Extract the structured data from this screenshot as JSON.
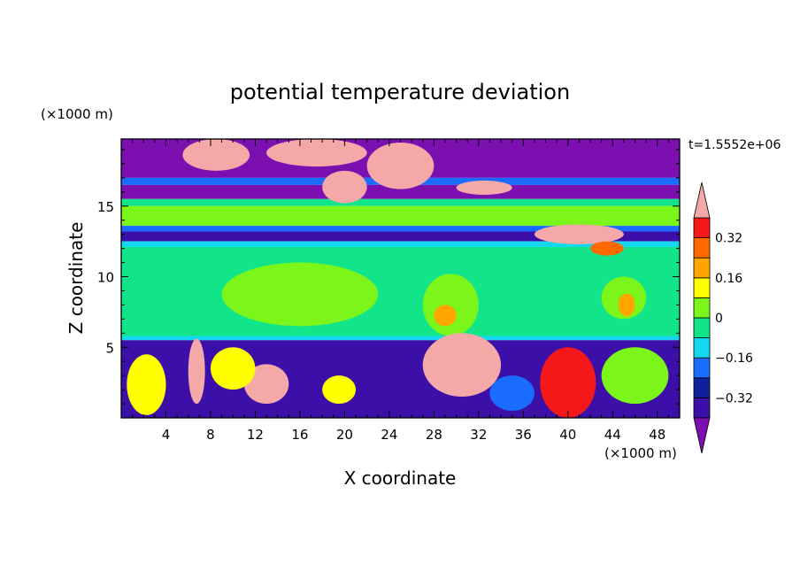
{
  "chart_data": {
    "type": "heatmap",
    "title": "potential temperature deviation",
    "xlabel": "X coordinate",
    "ylabel": "Z coordinate",
    "x_unit": "(×1000 m)",
    "y_unit": "(×1000 m)",
    "time_label": "t=1.5552e+06",
    "xlim": [
      0,
      50
    ],
    "ylim": [
      0,
      19.75
    ],
    "x_ticks": [
      4,
      8,
      12,
      16,
      20,
      24,
      28,
      32,
      36,
      40,
      44,
      48
    ],
    "y_ticks": [
      5,
      10,
      15
    ],
    "colorbar": {
      "levels": [
        -0.4,
        -0.32,
        -0.24,
        -0.16,
        -0.08,
        0,
        0.08,
        0.16,
        0.24,
        0.32,
        0.4
      ],
      "labeled_levels": [
        -0.32,
        -0.16,
        0,
        0.16,
        0.32
      ],
      "colors": [
        "#7b0fb0",
        "#3c10a8",
        "#10209c",
        "#1a6cff",
        "#14d8f0",
        "#12e48a",
        "#7cf51a",
        "#ffff00",
        "#ffa600",
        "#ff6a00",
        "#f51818",
        "#f4a8a8"
      ],
      "extend": "both"
    },
    "bands": [
      {
        "z": [
          17.0,
          19.75
        ],
        "value": -0.45
      },
      {
        "z": [
          16.5,
          17.0
        ],
        "value": -0.2
      },
      {
        "z": [
          15.5,
          16.5
        ],
        "value": -0.45
      },
      {
        "z": [
          15.0,
          15.5
        ],
        "value": -0.05
      },
      {
        "z": [
          13.6,
          15.0
        ],
        "value": 0.04
      },
      {
        "z": [
          13.2,
          13.6
        ],
        "value": -0.2
      },
      {
        "z": [
          12.5,
          13.2
        ],
        "value": -0.38
      },
      {
        "z": [
          12.1,
          12.5
        ],
        "value": -0.1
      },
      {
        "z": [
          5.8,
          12.1
        ],
        "value": -0.02
      },
      {
        "z": [
          5.5,
          5.8
        ],
        "value": -0.14
      },
      {
        "z": [
          0,
          5.5
        ],
        "value": -0.4
      }
    ],
    "anomalies": [
      {
        "x": [
          5.5,
          11.5
        ],
        "z": [
          17.5,
          19.75
        ],
        "value": 0.45
      },
      {
        "x": [
          13,
          22
        ],
        "z": [
          17.8,
          19.75
        ],
        "value": 0.45
      },
      {
        "x": [
          22,
          28
        ],
        "z": [
          16.2,
          19.5
        ],
        "value": 0.45
      },
      {
        "x": [
          18,
          22
        ],
        "z": [
          15.2,
          17.5
        ],
        "value": 0.45
      },
      {
        "x": [
          30,
          35
        ],
        "z": [
          15.8,
          16.8
        ],
        "value": 0.45
      },
      {
        "x": [
          37,
          45
        ],
        "z": [
          12.3,
          13.7
        ],
        "value": 0.45
      },
      {
        "x": [
          42,
          45
        ],
        "z": [
          11.5,
          12.5
        ],
        "value": 0.24
      },
      {
        "x": [
          9,
          23
        ],
        "z": [
          6.5,
          11
        ],
        "value": 0.04
      },
      {
        "x": [
          27,
          32
        ],
        "z": [
          5.8,
          10.2
        ],
        "value": 0.04
      },
      {
        "x": [
          28,
          30
        ],
        "z": [
          6.5,
          8
        ],
        "value": 0.2
      },
      {
        "x": [
          43,
          47
        ],
        "z": [
          7,
          10
        ],
        "value": 0.04
      },
      {
        "x": [
          44.5,
          46
        ],
        "z": [
          7.2,
          8.8
        ],
        "value": 0.2
      },
      {
        "x": [
          6,
          7.5
        ],
        "z": [
          1,
          5.6
        ],
        "value": 0.45
      },
      {
        "x": [
          11,
          15
        ],
        "z": [
          1,
          3.8
        ],
        "value": 0.45
      },
      {
        "x": [
          27,
          34
        ],
        "z": [
          1.5,
          6
        ],
        "value": 0.45
      },
      {
        "x": [
          38.5,
          41.5
        ],
        "z": [
          0.2,
          4.3
        ],
        "value": 0.45
      },
      {
        "x": [
          37.5,
          42.5
        ],
        "z": [
          0,
          5
        ],
        "value": 0.36
      },
      {
        "x": [
          0.5,
          4
        ],
        "z": [
          0.2,
          4.5
        ],
        "value": 0.1
      },
      {
        "x": [
          8,
          12
        ],
        "z": [
          2,
          5
        ],
        "value": 0.1
      },
      {
        "x": [
          18,
          21
        ],
        "z": [
          1,
          3
        ],
        "value": 0.1
      },
      {
        "x": [
          43,
          49
        ],
        "z": [
          1,
          5
        ],
        "value": 0.0
      },
      {
        "x": [
          33,
          37
        ],
        "z": [
          0.5,
          3
        ],
        "value": -0.2
      }
    ]
  }
}
